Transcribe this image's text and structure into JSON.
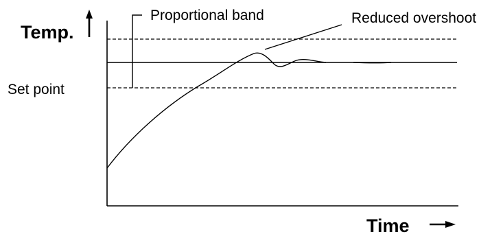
{
  "labels": {
    "y_axis": "Temp.",
    "x_axis": "Time",
    "set_point": "Set point",
    "proportional_band": "Proportional band",
    "reduced_overshoot": "Reduced overshoot"
  },
  "colors": {
    "line": "#000000",
    "background": "#ffffff"
  }
}
